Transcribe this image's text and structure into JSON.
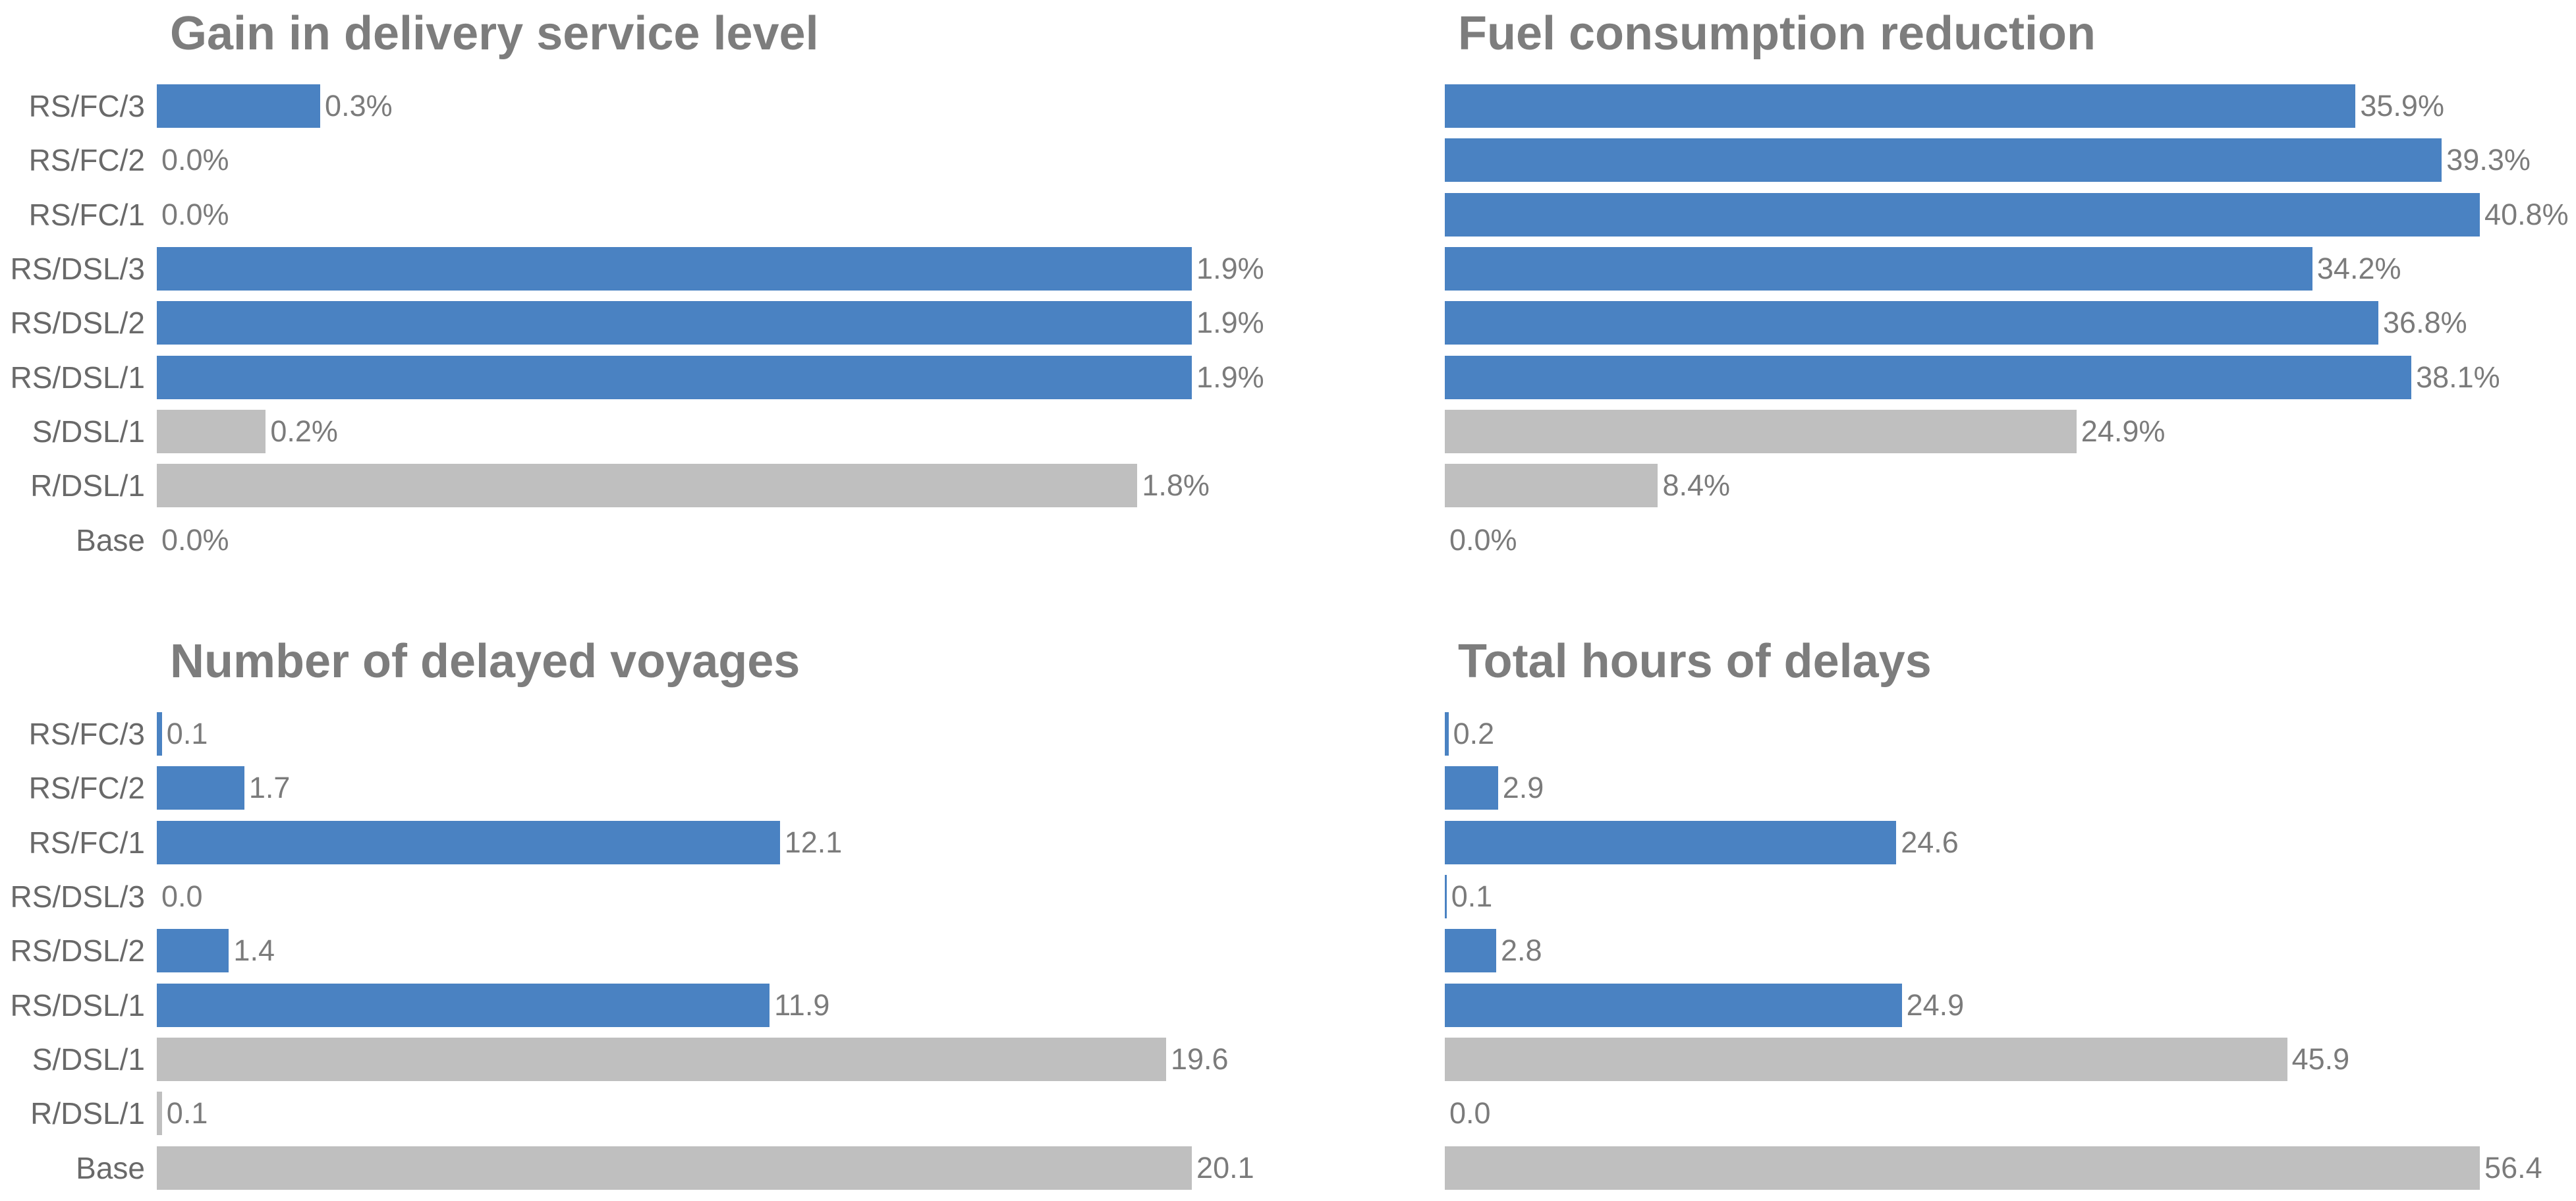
{
  "page": {
    "background": "#ffffff"
  },
  "colors": {
    "highlight_bar": "#4a82c2",
    "baseline_bar": "#bfbfbf",
    "title_text": "#7d7d7d",
    "category_text": "#696969",
    "value_text": "#7b7b7b"
  },
  "category_groups": [
    "highlight",
    "highlight",
    "highlight",
    "highlight",
    "highlight",
    "highlight",
    "baseline",
    "baseline",
    "baseline"
  ],
  "chart_data": [
    {
      "type": "bar",
      "orientation": "horizontal",
      "title": "Gain in delivery service level",
      "show_category_labels": true,
      "grid": false,
      "legend": false,
      "categories": [
        "RS/FC/3",
        "RS/FC/2",
        "RS/FC/1",
        "RS/DSL/3",
        "RS/DSL/2",
        "RS/DSL/1",
        "S/DSL/1",
        "R/DSL/1",
        "Base"
      ],
      "values": [
        0.3,
        0.0,
        0.0,
        1.9,
        1.9,
        1.9,
        0.2,
        1.8,
        0.0
      ],
      "value_labels": [
        "0.3%",
        "0.0%",
        "0.0%",
        "1.9%",
        "1.9%",
        "1.9%",
        "0.2%",
        "1.8%",
        "0.0%"
      ],
      "unit": "%",
      "xlim": [
        0,
        2.0
      ]
    },
    {
      "type": "bar",
      "orientation": "horizontal",
      "title": "Fuel consumption reduction",
      "show_category_labels": false,
      "grid": false,
      "legend": false,
      "categories": [
        "RS/FC/3",
        "RS/FC/2",
        "RS/FC/1",
        "RS/DSL/3",
        "RS/DSL/2",
        "RS/DSL/1",
        "S/DSL/1",
        "R/DSL/1",
        "Base"
      ],
      "values": [
        35.9,
        39.3,
        40.8,
        34.2,
        36.8,
        38.1,
        24.9,
        8.4,
        0.0
      ],
      "value_labels": [
        "35.9%",
        "39.3%",
        "40.8%",
        "34.2%",
        "36.8%",
        "38.1%",
        "24.9%",
        "8.4%",
        "0.0%"
      ],
      "unit": "%",
      "xlim": [
        0,
        43
      ]
    },
    {
      "type": "bar",
      "orientation": "horizontal",
      "title": "Number of delayed voyages",
      "show_category_labels": true,
      "grid": false,
      "legend": false,
      "categories": [
        "RS/FC/3",
        "RS/FC/2",
        "RS/FC/1",
        "RS/DSL/3",
        "RS/DSL/2",
        "RS/DSL/1",
        "S/DSL/1",
        "R/DSL/1",
        "Base"
      ],
      "values": [
        0.1,
        1.7,
        12.1,
        0.0,
        1.4,
        11.9,
        19.6,
        0.1,
        20.1
      ],
      "value_labels": [
        "0.1",
        "1.7",
        "12.1",
        "0.0",
        "1.4",
        "11.9",
        "19.6",
        "0.1",
        "20.1"
      ],
      "unit": "voyages",
      "xlim": [
        0,
        21
      ]
    },
    {
      "type": "bar",
      "orientation": "horizontal",
      "title": "Total hours of delays",
      "show_category_labels": false,
      "grid": false,
      "legend": false,
      "categories": [
        "RS/FC/3",
        "RS/FC/2",
        "RS/FC/1",
        "RS/DSL/3",
        "RS/DSL/2",
        "RS/DSL/1",
        "S/DSL/1",
        "R/DSL/1",
        "Base"
      ],
      "values": [
        0.2,
        2.9,
        24.6,
        0.1,
        2.8,
        24.9,
        45.9,
        0.0,
        56.4
      ],
      "value_labels": [
        "0.2",
        "2.9",
        "24.6",
        "0.1",
        "2.8",
        "24.9",
        "45.9",
        "0.0",
        "56.4"
      ],
      "unit": "hours",
      "xlim": [
        0,
        59
      ]
    }
  ]
}
